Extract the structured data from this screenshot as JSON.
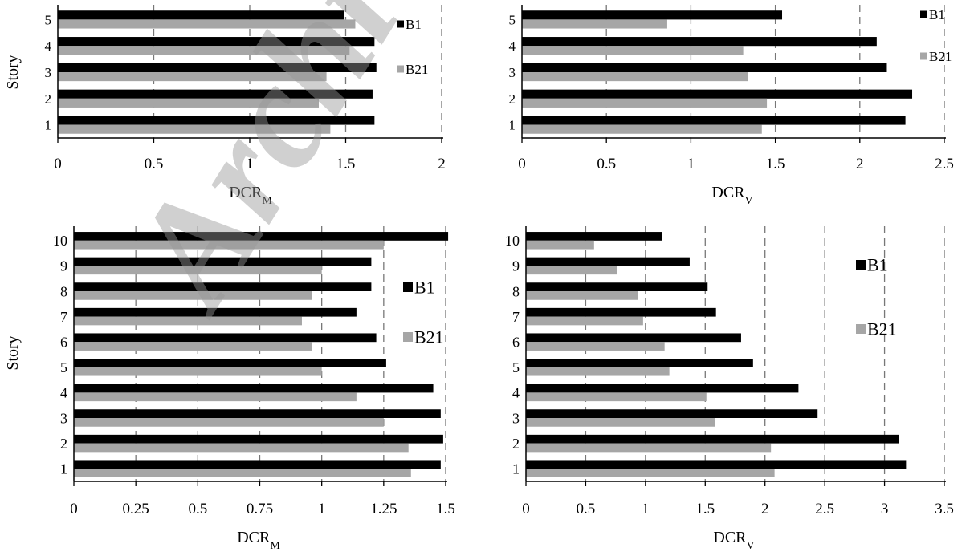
{
  "watermark": "Archive of SID",
  "colors": {
    "B1": "#000000",
    "B21": "#a6a6a6"
  },
  "chart_data": [
    {
      "type": "bar",
      "orientation": "horizontal",
      "categories": [
        "1",
        "2",
        "3",
        "4",
        "5"
      ],
      "series": [
        {
          "name": "B1",
          "values": [
            1.65,
            1.64,
            1.66,
            1.65,
            1.49
          ]
        },
        {
          "name": "B21",
          "values": [
            1.42,
            1.36,
            1.4,
            1.52,
            1.55
          ]
        }
      ],
      "xlabel_main": "DCR",
      "xlabel_sub": "M",
      "ylabel": "Story",
      "xlim": [
        0,
        2
      ],
      "xticks": [
        "0",
        "0.5",
        "1",
        "1.5",
        "2"
      ],
      "grid": "vertical dashed",
      "legend": "right"
    },
    {
      "type": "bar",
      "orientation": "horizontal",
      "categories": [
        "1",
        "2",
        "3",
        "4",
        "5"
      ],
      "series": [
        {
          "name": "B1",
          "values": [
            2.27,
            2.31,
            2.16,
            2.1,
            1.54
          ]
        },
        {
          "name": "B21",
          "values": [
            1.42,
            1.45,
            1.34,
            1.31,
            0.86
          ]
        }
      ],
      "xlabel_main": "DCR",
      "xlabel_sub": "V",
      "ylabel": "",
      "xlim": [
        0,
        2.5
      ],
      "xticks": [
        "0",
        "0.5",
        "1",
        "1.5",
        "2",
        "2.5"
      ],
      "grid": "vertical dashed",
      "legend": "right"
    },
    {
      "type": "bar",
      "orientation": "horizontal",
      "categories": [
        "1",
        "2",
        "3",
        "4",
        "5",
        "6",
        "7",
        "8",
        "9",
        "10"
      ],
      "series": [
        {
          "name": "B1",
          "values": [
            1.48,
            1.49,
            1.48,
            1.45,
            1.26,
            1.22,
            1.14,
            1.2,
            1.2,
            1.51
          ]
        },
        {
          "name": "B21",
          "values": [
            1.36,
            1.35,
            1.25,
            1.14,
            1.0,
            0.96,
            0.92,
            0.96,
            1.0,
            1.25
          ]
        }
      ],
      "xlabel_main": "DCR",
      "xlabel_sub": "M",
      "ylabel": "Story",
      "xlim": [
        0,
        1.5
      ],
      "xticks": [
        "0",
        "0.25",
        "0.5",
        "0.75",
        "1",
        "1.25",
        "1.5"
      ],
      "grid": "vertical dashed",
      "legend": "right"
    },
    {
      "type": "bar",
      "orientation": "horizontal",
      "categories": [
        "1",
        "2",
        "3",
        "4",
        "5",
        "6",
        "7",
        "8",
        "9",
        "10"
      ],
      "series": [
        {
          "name": "B1",
          "values": [
            3.18,
            3.12,
            2.44,
            2.28,
            1.9,
            1.8,
            1.59,
            1.52,
            1.37,
            1.14
          ]
        },
        {
          "name": "B21",
          "values": [
            2.08,
            2.05,
            1.58,
            1.51,
            1.2,
            1.16,
            0.98,
            0.94,
            0.76,
            0.57
          ]
        }
      ],
      "xlabel_main": "DCR",
      "xlabel_sub": "V",
      "ylabel": "",
      "xlim": [
        0,
        3.5
      ],
      "xticks": [
        "0",
        "0.5",
        "1",
        "1.5",
        "2",
        "2.5",
        "3",
        "3.5"
      ],
      "grid": "vertical dashed",
      "legend": "right"
    }
  ]
}
